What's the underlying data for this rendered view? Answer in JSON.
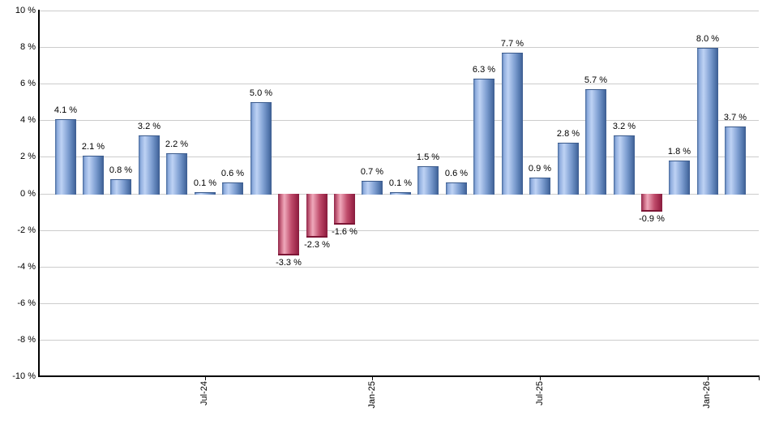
{
  "chart_data": {
    "type": "bar",
    "title": "",
    "xlabel": "",
    "ylabel": "",
    "values": [
      4.1,
      2.1,
      0.8,
      3.2,
      2.2,
      0.1,
      0.6,
      5.0,
      -3.3,
      -2.3,
      -1.6,
      0.7,
      0.1,
      1.5,
      0.6,
      6.3,
      7.7,
      0.9,
      2.8,
      5.7,
      3.2,
      -0.9,
      1.8,
      8.0,
      3.7
    ],
    "data_labels": [
      "4.1 %",
      "2.1 %",
      "0.8 %",
      "3.2 %",
      "2.2 %",
      "0.1 %",
      "0.6 %",
      "5.0 %",
      "-3.3 %",
      "-2.3 %",
      "-1.6 %",
      "0.7 %",
      "0.1 %",
      "1.5 %",
      "0.6 %",
      "6.3 %",
      "7.7 %",
      "0.9 %",
      "2.8 %",
      "5.7 %",
      "3.2 %",
      "-0.9 %",
      "1.8 %",
      "8.0 %",
      "3.7 %"
    ],
    "x_tick_labels": [
      "Jul-24",
      "Jan-25",
      "Jul-25",
      "Jan-26"
    ],
    "x_tick_bar_indices": [
      5,
      11,
      17,
      23
    ],
    "y_tick_labels": [
      "10 %",
      "8 %",
      "6 %",
      "4 %",
      "2 %",
      "0 %",
      "-2 %",
      "-4 %",
      "-6 %",
      "-8 %",
      "-10 %"
    ],
    "ylim": [
      -10,
      10
    ],
    "y_step": 2,
    "grid": true,
    "legend": "none",
    "colors": {
      "positive_bar_main": "#82a2d4",
      "positive_bar_highlight": "#bed2f4",
      "positive_bar_dark": "#3c5c90",
      "negative_bar_main": "#c04d6c",
      "negative_bar_highlight": "#efa9bb",
      "negative_bar_dark": "#871c3d",
      "gridline": "#cccccc",
      "axis": "#000000",
      "label_text": "#000000"
    }
  }
}
